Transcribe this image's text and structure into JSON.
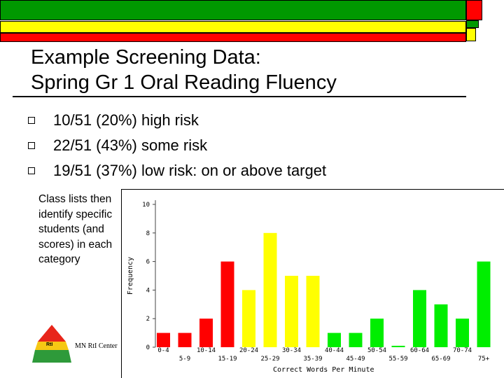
{
  "slide": {
    "title_line1": "Example Screening Data:",
    "title_line2": "Spring Gr 1 Oral Reading Fluency",
    "bullets": [
      "10/51 (20%) high risk",
      "22/51 (43%) some risk",
      "19/51 (37%) low risk: on or above target"
    ],
    "side_note": "Class lists then identify specific students (and scores) in each category",
    "logo_caption": "MN RtI Center",
    "logo_text": "RtI"
  },
  "colors": {
    "band_green": "#009900",
    "band_yellow": "#ffff00",
    "band_red": "#ff0000",
    "bar_red": "#ff0000",
    "bar_yellow": "#ffff00",
    "bar_green": "#00ee00"
  },
  "chart_data": {
    "type": "bar",
    "xlabel": "Correct Words Per Minute",
    "ylabel": "Frequency",
    "ylim": [
      0,
      10
    ],
    "yticks": [
      0,
      2,
      4,
      6,
      8,
      10
    ],
    "grid": false,
    "categories": [
      "0-4",
      "5-9",
      "10-14",
      "15-19",
      "20-24",
      "25-29",
      "30-34",
      "35-39",
      "40-44",
      "45-49",
      "50-54",
      "55-59",
      "60-64",
      "65-69",
      "70-74",
      "75+"
    ],
    "values": [
      1,
      1,
      2,
      6,
      4,
      8,
      5,
      5,
      1,
      1,
      2,
      0.1,
      4,
      3,
      2,
      6
    ],
    "bar_colors": [
      "red",
      "red",
      "red",
      "red",
      "yellow",
      "yellow",
      "yellow",
      "yellow",
      "green",
      "green",
      "green",
      "green",
      "green",
      "green",
      "green",
      "green"
    ]
  }
}
